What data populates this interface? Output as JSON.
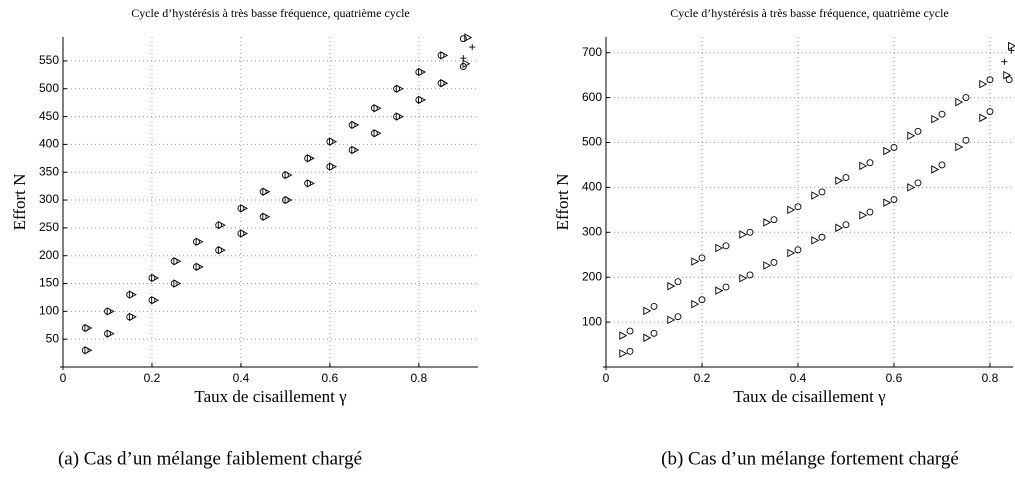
{
  "chart_data": [
    {
      "type": "scatter",
      "title": "Cycle d’hystérésis à très basse fréquence, quatrième cycle",
      "xlabel": "Taux de cisaillement γ",
      "ylabel": "Effort N",
      "caption": "(a) Cas d’un mélange faiblement chargé",
      "xlim": [
        0,
        0.933
      ],
      "ylim": [
        0,
        593
      ],
      "xticks": [
        0,
        0.2,
        0.4,
        0.6,
        0.8
      ],
      "yticks": [
        50,
        100,
        150,
        200,
        250,
        300,
        350,
        400,
        450,
        500,
        550
      ],
      "grid": true,
      "series": [
        {
          "marker": "circle",
          "color": "#000000",
          "x": [
            0.05,
            0.1,
            0.15,
            0.2,
            0.25,
            0.3,
            0.35,
            0.4,
            0.45,
            0.5,
            0.55,
            0.6,
            0.65,
            0.7,
            0.75,
            0.8,
            0.85,
            0.9,
            0.05,
            0.1,
            0.15,
            0.2,
            0.25,
            0.3,
            0.35,
            0.4,
            0.45,
            0.5,
            0.55,
            0.6,
            0.65,
            0.7,
            0.75,
            0.8,
            0.85,
            0.9
          ],
          "values": [
            70,
            100,
            130,
            160,
            190,
            225,
            255,
            285,
            315,
            345,
            375,
            405,
            435,
            465,
            500,
            530,
            560,
            590,
            30,
            60,
            90,
            120,
            150,
            180,
            210,
            240,
            270,
            300,
            330,
            360,
            390,
            420,
            450,
            480,
            510,
            540
          ]
        },
        {
          "marker": "triangle",
          "color": "#000000",
          "x": [
            0.056,
            0.106,
            0.156,
            0.206,
            0.256,
            0.306,
            0.356,
            0.406,
            0.456,
            0.506,
            0.556,
            0.606,
            0.656,
            0.706,
            0.756,
            0.806,
            0.856,
            0.91,
            0.056,
            0.106,
            0.156,
            0.206,
            0.256,
            0.306,
            0.356,
            0.406,
            0.456,
            0.506,
            0.556,
            0.606,
            0.656,
            0.706,
            0.756,
            0.806,
            0.856,
            0.906
          ],
          "values": [
            70,
            100,
            130,
            160,
            190,
            225,
            255,
            285,
            315,
            345,
            375,
            405,
            435,
            465,
            500,
            530,
            560,
            592,
            30,
            60,
            90,
            120,
            150,
            180,
            210,
            240,
            270,
            300,
            330,
            360,
            390,
            420,
            450,
            480,
            510,
            545
          ]
        },
        {
          "marker": "plus",
          "color": "#000000",
          "x": [
            0,
            0.9,
            0.92
          ],
          "values": [
            0,
            555,
            575
          ]
        }
      ]
    },
    {
      "type": "scatter",
      "title": "Cycle d’hystérésis à très basse fréquence, quatrième cycle",
      "xlabel": "Taux de cisaillement γ",
      "ylabel": "Effort N",
      "caption": "(b) Cas d’un mélange fortement chargé",
      "xlim": [
        0,
        0.848
      ],
      "ylim": [
        0,
        735
      ],
      "xticks": [
        0,
        0.2,
        0.4,
        0.6,
        0.8
      ],
      "yticks": [
        100,
        200,
        300,
        400,
        500,
        600,
        700
      ],
      "grid": true,
      "series": [
        {
          "marker": "circle",
          "color": "#000000",
          "x": [
            0.05,
            0.1,
            0.15,
            0.2,
            0.25,
            0.3,
            0.35,
            0.4,
            0.45,
            0.5,
            0.55,
            0.6,
            0.65,
            0.7,
            0.75,
            0.8,
            0.05,
            0.1,
            0.15,
            0.2,
            0.25,
            0.3,
            0.35,
            0.4,
            0.45,
            0.5,
            0.55,
            0.6,
            0.65,
            0.7,
            0.75,
            0.8,
            0.84
          ],
          "values": [
            80,
            135,
            190,
            243,
            270,
            300,
            328,
            357,
            390,
            422,
            455,
            489,
            525,
            563,
            600,
            640,
            35,
            75,
            112,
            150,
            178,
            205,
            233,
            261,
            289,
            317,
            345,
            373,
            410,
            450,
            505,
            569,
            640
          ]
        },
        {
          "marker": "triangle",
          "color": "#000000",
          "x": [
            0.035,
            0.085,
            0.135,
            0.185,
            0.235,
            0.285,
            0.335,
            0.385,
            0.435,
            0.485,
            0.535,
            0.585,
            0.635,
            0.685,
            0.735,
            0.785,
            0.845,
            0.035,
            0.085,
            0.135,
            0.185,
            0.235,
            0.285,
            0.335,
            0.385,
            0.435,
            0.485,
            0.535,
            0.585,
            0.635,
            0.685,
            0.735,
            0.785,
            0.835
          ],
          "values": [
            70,
            125,
            180,
            235,
            265,
            295,
            322,
            350,
            382,
            415,
            448,
            481,
            515,
            552,
            590,
            630,
            715,
            30,
            65,
            105,
            140,
            170,
            198,
            226,
            254,
            282,
            310,
            338,
            366,
            400,
            440,
            490,
            555,
            650
          ]
        },
        {
          "marker": "plus",
          "color": "#000000",
          "x": [
            0,
            0.83,
            0.845
          ],
          "values": [
            0,
            680,
            705
          ]
        }
      ]
    }
  ]
}
